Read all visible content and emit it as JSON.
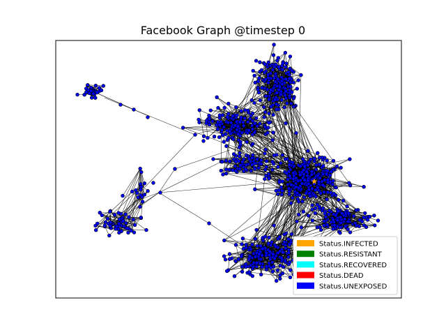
{
  "figure": {
    "title": "Facebook Graph @timestep 0"
  },
  "legend": {
    "entries": [
      {
        "label": "Status.INFECTED",
        "color": "#ffa500"
      },
      {
        "label": "Status.RESISTANT",
        "color": "#008000"
      },
      {
        "label": "Status.RECOVERED",
        "color": "#00ffff"
      },
      {
        "label": "Status.DEAD",
        "color": "#ff0000"
      },
      {
        "label": "Status.UNEXPOSED",
        "color": "#0000ff"
      }
    ]
  },
  "graph": {
    "node_color": "#0000ff",
    "node_outline_color": "#000000",
    "edge_color": "#000000",
    "infected_marker": "star-icon",
    "infected_color": "#ffa500"
  }
}
